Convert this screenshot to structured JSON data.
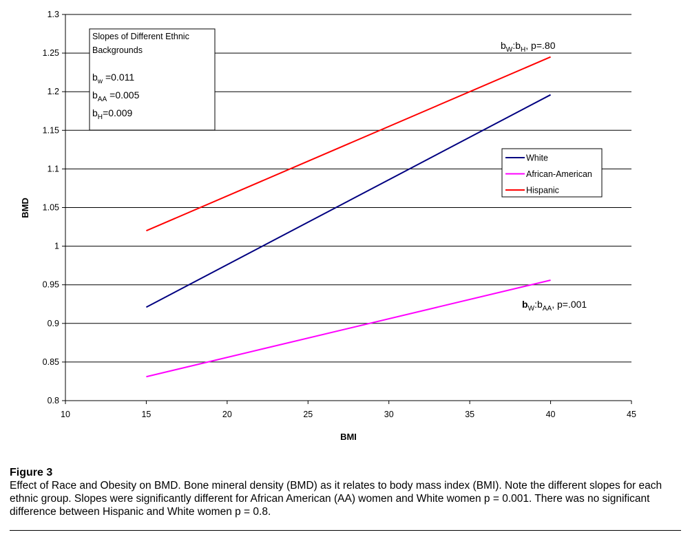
{
  "chart_data": {
    "type": "line",
    "xlabel": "BMI",
    "ylabel": "BMD",
    "xlim": [
      10,
      45
    ],
    "ylim": [
      0.8,
      1.3
    ],
    "x_ticks": [
      10,
      15,
      20,
      25,
      30,
      35,
      40,
      45
    ],
    "y_ticks": [
      "0.8",
      "0.85",
      "0.9",
      "0.95",
      "1",
      "1.05",
      "1.1",
      "1.15",
      "1.2",
      "1.25",
      "1.3"
    ],
    "grid": "horizontal",
    "legend_placement": "right",
    "series": [
      {
        "name": "White",
        "color": "#000080",
        "x": [
          15,
          40
        ],
        "y": [
          0.921,
          1.196
        ]
      },
      {
        "name": "African-American",
        "color": "#FF00FF",
        "x": [
          15,
          40
        ],
        "y": [
          0.831,
          0.956
        ]
      },
      {
        "name": "Hispanic",
        "color": "#FF0000",
        "x": [
          15,
          40
        ],
        "y": [
          1.02,
          1.245
        ]
      }
    ],
    "slopes_box": {
      "title_line1": "Slopes of Different Ethnic",
      "title_line2": "Backgrounds",
      "items": [
        {
          "b": "b",
          "sub": "w",
          "rest": " =0.011"
        },
        {
          "b": "b",
          "sub": "AA",
          "rest": " =0.005"
        },
        {
          "b": "b",
          "sub": "H",
          "rest": "=0.009"
        }
      ]
    },
    "annotations": [
      {
        "b1": "b",
        "s1": "W",
        "mid": ":b",
        "s2": "H",
        "rest": ", p=.80"
      },
      {
        "b1": "b",
        "s1": "W",
        "mid": ":b",
        "s2": "AA",
        "rest": ", p=.001"
      }
    ]
  },
  "caption": {
    "title": "Figure 3",
    "text": "Effect of Race and Obesity on BMD. Bone mineral density (BMD) as it relates to body mass index (BMI). Note the different slopes for each ethnic group. Slopes were significantly different for African American (AA) women and White women p = 0.001. There was no significant difference between Hispanic and White women p = 0.8."
  }
}
